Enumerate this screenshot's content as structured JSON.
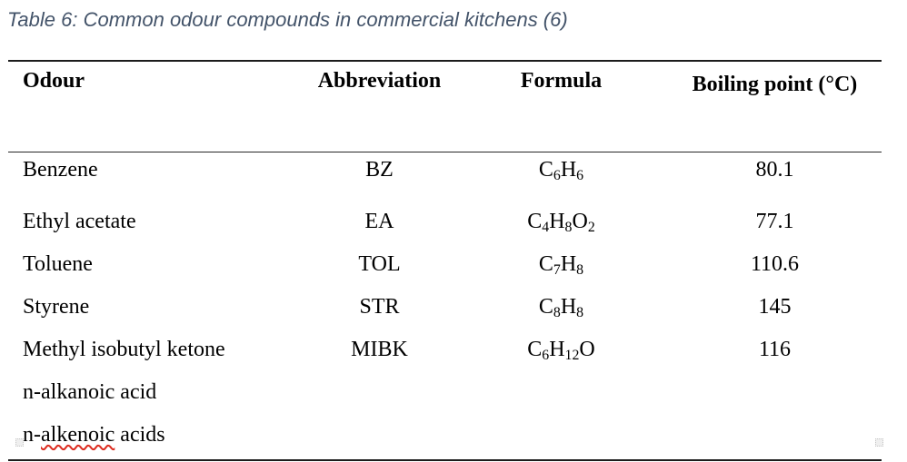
{
  "caption": "Table 6: Common odour compounds in commercial kitchens (6)",
  "colors": {
    "caption_text": "#44546a",
    "table_rules": "#1c1c1c",
    "spellcheck_underline": "#dd2c20",
    "body_text": "#000000"
  },
  "table": {
    "headers": [
      "Odour",
      "Abbreviation",
      "Formula",
      "Boiling point (°C)"
    ],
    "rows": [
      {
        "odour": "Benzene",
        "abbreviation": "BZ",
        "formula": "C6H6",
        "boiling_point": "80.1"
      },
      {
        "odour": "Ethyl acetate",
        "abbreviation": "EA",
        "formula": "C4H8O2",
        "boiling_point": "77.1"
      },
      {
        "odour": "Toluene",
        "abbreviation": "TOL",
        "formula": "C7H8",
        "boiling_point": "110.6"
      },
      {
        "odour": "Styrene",
        "abbreviation": "STR",
        "formula": "C8H8",
        "boiling_point": "145"
      },
      {
        "odour": "Methyl isobutyl ketone",
        "abbreviation": "MIBK",
        "formula": "C6H12O",
        "boiling_point": "116"
      },
      {
        "odour": "n-alkanoic acid",
        "abbreviation": "",
        "formula": "",
        "boiling_point": ""
      },
      {
        "odour_prefix": "n-",
        "odour_misspelled": "alkenoic",
        "odour_suffix": " acids",
        "abbreviation": "",
        "formula": "",
        "boiling_point": ""
      }
    ]
  }
}
